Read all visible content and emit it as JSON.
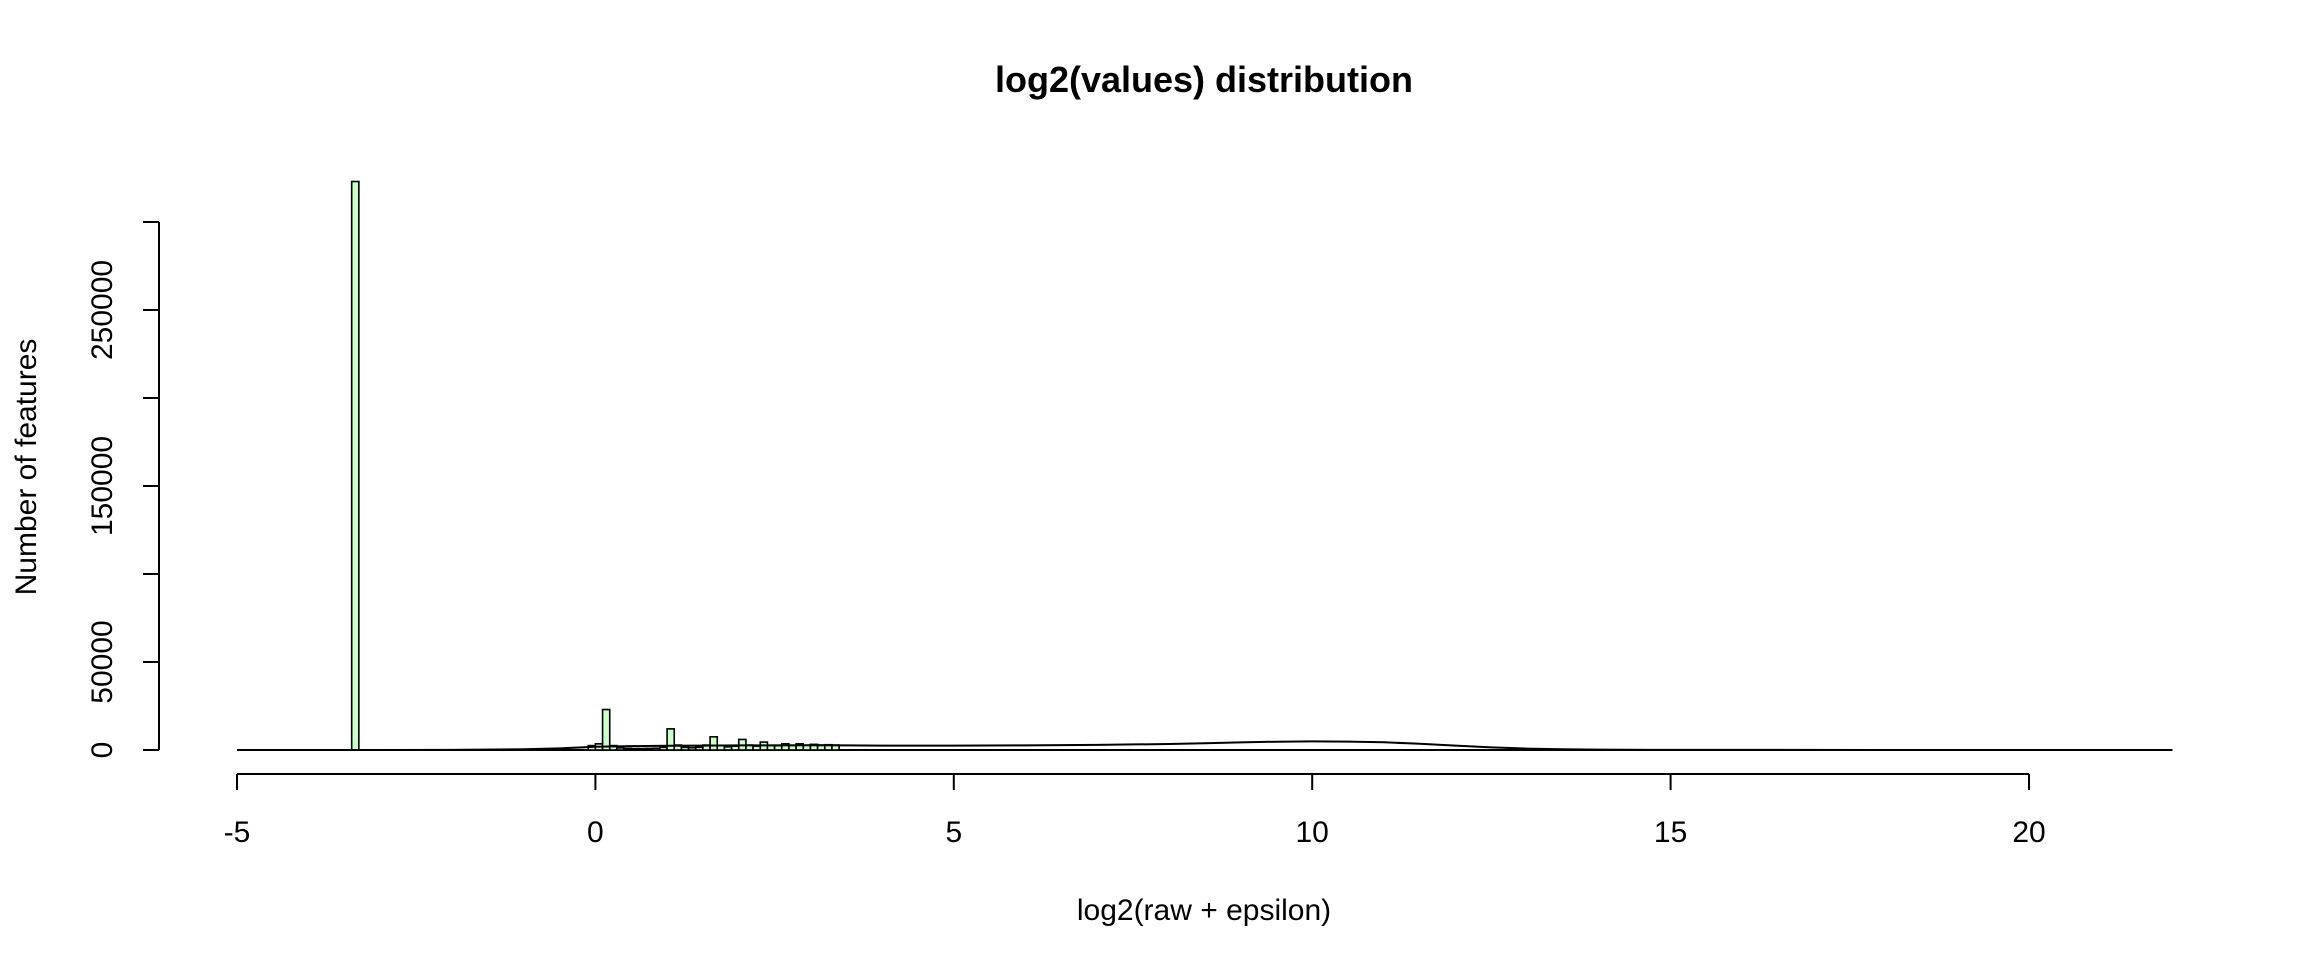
{
  "chart_data": {
    "type": "bar",
    "title": "log2(values) distribution",
    "xlabel": "log2(raw + epsilon)",
    "ylabel": "Number of features",
    "xlim": [
      -5,
      22
    ],
    "ylim": [
      0,
      300000
    ],
    "x_ticks": [
      -5,
      0,
      5,
      10,
      15,
      20
    ],
    "x_tick_labels": [
      "-5",
      "0",
      "5",
      "10",
      "15",
      "20"
    ],
    "y_ticks": [
      0,
      50000,
      100000,
      150000,
      200000,
      250000,
      300000
    ],
    "y_tick_labels": [
      "0",
      "50000",
      "",
      "150000",
      "",
      "250000",
      ""
    ],
    "grid": false,
    "legend": "none",
    "bar_fill": "#ccffcc",
    "bar_stroke": "#000000",
    "bin_width": 0.1,
    "bins": [
      {
        "x": -3.35,
        "y": 323000
      },
      {
        "x": -0.05,
        "y": 2500
      },
      {
        "x": 0.05,
        "y": 3500
      },
      {
        "x": 0.15,
        "y": 23000
      },
      {
        "x": 0.25,
        "y": 2500
      },
      {
        "x": 0.35,
        "y": 1200
      },
      {
        "x": 0.45,
        "y": 900
      },
      {
        "x": 0.55,
        "y": 800
      },
      {
        "x": 0.65,
        "y": 800
      },
      {
        "x": 0.75,
        "y": 900
      },
      {
        "x": 0.85,
        "y": 1000
      },
      {
        "x": 0.95,
        "y": 1500
      },
      {
        "x": 1.05,
        "y": 12000
      },
      {
        "x": 1.15,
        "y": 2800
      },
      {
        "x": 1.25,
        "y": 1500
      },
      {
        "x": 1.35,
        "y": 1300
      },
      {
        "x": 1.45,
        "y": 1500
      },
      {
        "x": 1.55,
        "y": 2800
      },
      {
        "x": 1.65,
        "y": 7500
      },
      {
        "x": 1.75,
        "y": 2500
      },
      {
        "x": 1.85,
        "y": 1800
      },
      {
        "x": 1.95,
        "y": 2200
      },
      {
        "x": 2.05,
        "y": 6000
      },
      {
        "x": 2.15,
        "y": 2800
      },
      {
        "x": 2.25,
        "y": 2200
      },
      {
        "x": 2.35,
        "y": 4500
      },
      {
        "x": 2.45,
        "y": 2600
      },
      {
        "x": 2.55,
        "y": 2500
      },
      {
        "x": 2.65,
        "y": 3500
      },
      {
        "x": 2.75,
        "y": 2600
      },
      {
        "x": 2.85,
        "y": 3500
      },
      {
        "x": 2.95,
        "y": 2700
      },
      {
        "x": 3.05,
        "y": 3200
      },
      {
        "x": 3.15,
        "y": 2800
      },
      {
        "x": 3.25,
        "y": 3000
      },
      {
        "x": 3.35,
        "y": 2800
      }
    ],
    "density": [
      [
        -5,
        0
      ],
      [
        -3,
        0
      ],
      [
        -2,
        50
      ],
      [
        -1,
        400
      ],
      [
        -0.5,
        900
      ],
      [
        0,
        1800
      ],
      [
        0.5,
        2200
      ],
      [
        1,
        2400
      ],
      [
        1.5,
        2500
      ],
      [
        2,
        2600
      ],
      [
        3,
        2700
      ],
      [
        3.5,
        2600
      ],
      [
        4,
        2500
      ],
      [
        5,
        2500
      ],
      [
        6,
        2600
      ],
      [
        7,
        2900
      ],
      [
        8,
        3400
      ],
      [
        8.5,
        3800
      ],
      [
        9,
        4300
      ],
      [
        9.5,
        4700
      ],
      [
        10,
        4900
      ],
      [
        10.5,
        4800
      ],
      [
        11,
        4400
      ],
      [
        11.5,
        3600
      ],
      [
        12,
        2500
      ],
      [
        12.5,
        1500
      ],
      [
        13,
        800
      ],
      [
        13.5,
        400
      ],
      [
        14,
        200
      ],
      [
        15,
        80
      ],
      [
        16,
        30
      ],
      [
        18,
        10
      ],
      [
        20,
        0
      ],
      [
        22,
        0
      ]
    ]
  }
}
